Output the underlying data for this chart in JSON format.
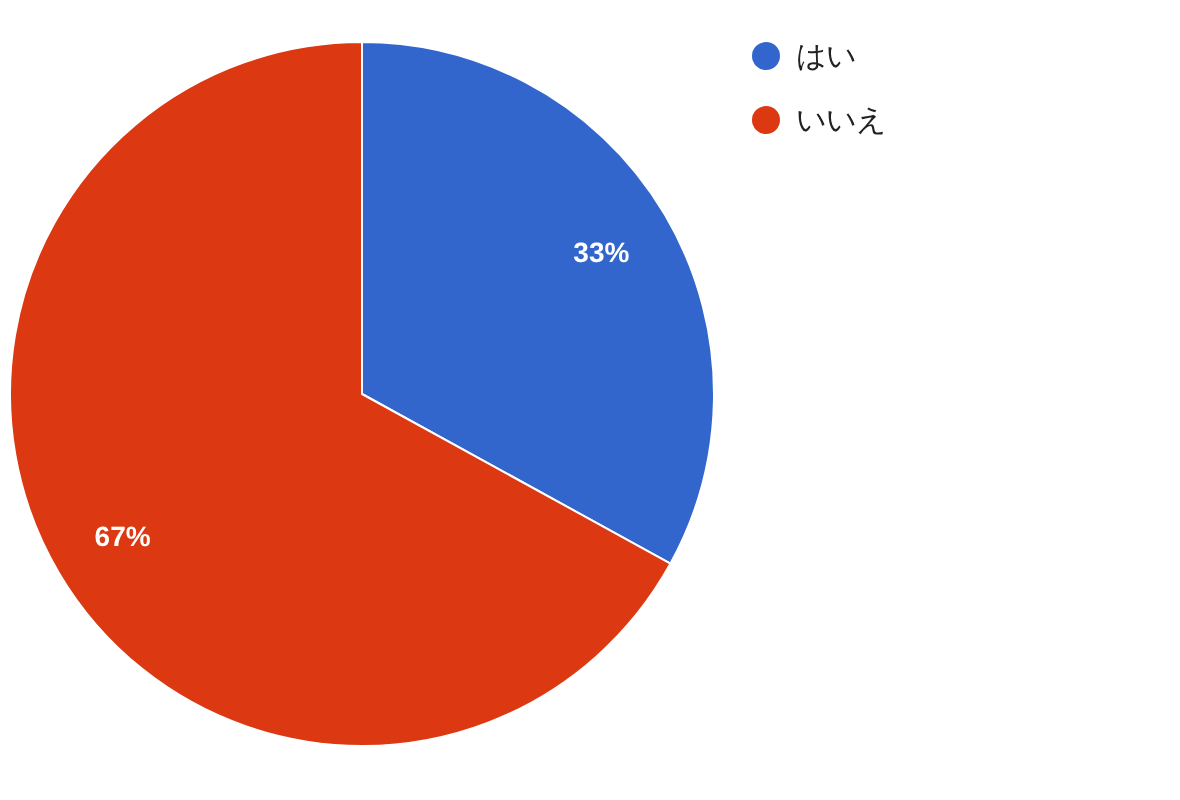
{
  "chart_data": {
    "type": "pie",
    "categories": [
      "はい",
      "いいえ"
    ],
    "values": [
      33,
      67
    ],
    "colors": [
      "#3366cc",
      "#dc3912"
    ],
    "value_labels": [
      "33%",
      "67%"
    ],
    "legend": "top right"
  }
}
